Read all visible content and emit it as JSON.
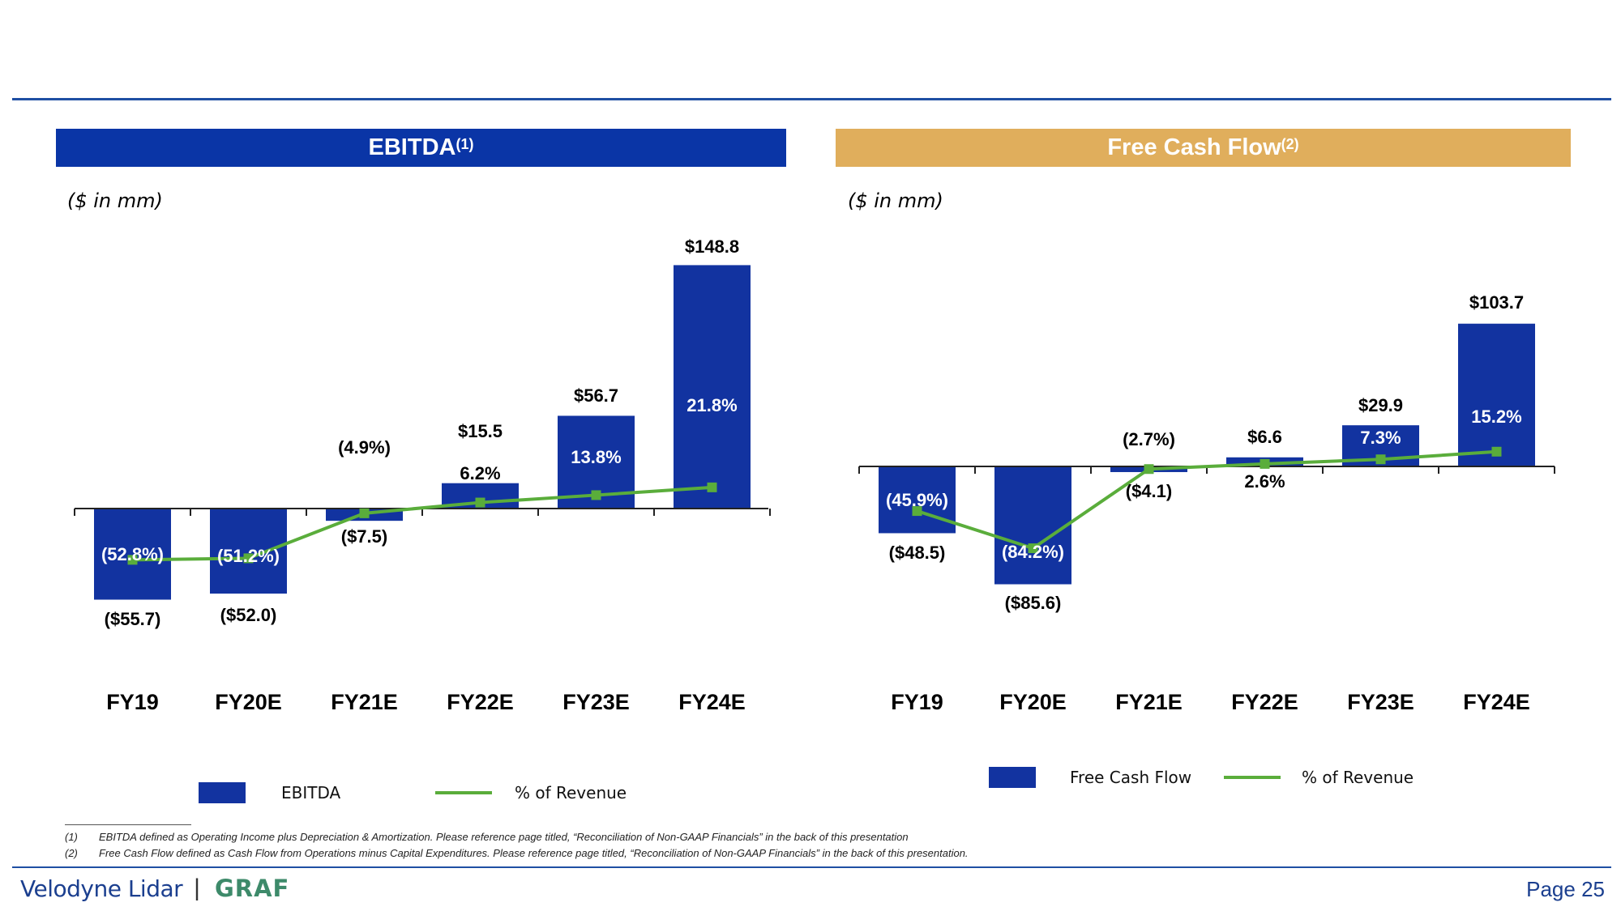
{
  "colors": {
    "blue": "#1233a0",
    "green": "#5aad3b",
    "gold": "#e0ae5c",
    "header_blue": "#0a35a6"
  },
  "panels": [
    {
      "title": "EBITDA",
      "sup": "(1)",
      "units": "($ in mm)",
      "legend_bar": "EBITDA",
      "legend_line": "% of Revenue"
    },
    {
      "title": "Free Cash Flow",
      "sup": "(2)",
      "units": "($ in mm)",
      "legend_bar": "Free Cash Flow",
      "legend_line": "% of Revenue"
    }
  ],
  "chart_data": [
    {
      "type": "bar",
      "title": "EBITDA",
      "categories": [
        "FY19",
        "FY20E",
        "FY21E",
        "FY22E",
        "FY23E",
        "FY24E"
      ],
      "series": [
        {
          "name": "EBITDA",
          "values": [
            -55.7,
            -52.0,
            -7.5,
            15.5,
            56.7,
            148.8
          ],
          "labels": [
            "($55.7)",
            "($52.0)",
            "($7.5)",
            "$15.5",
            "$56.7",
            "$148.8"
          ]
        },
        {
          "name": "% of Revenue",
          "type": "line",
          "values": [
            -52.8,
            -51.2,
            -4.9,
            6.2,
            13.8,
            21.8
          ],
          "labels": [
            "(52.8%)",
            "(51.2%)",
            "(4.9%)",
            "6.2%",
            "13.8%",
            "21.8%"
          ]
        }
      ]
    },
    {
      "type": "bar",
      "title": "Free Cash Flow",
      "categories": [
        "FY19",
        "FY20E",
        "FY21E",
        "FY22E",
        "FY23E",
        "FY24E"
      ],
      "series": [
        {
          "name": "Free Cash Flow",
          "values": [
            -48.5,
            -85.6,
            -4.1,
            6.6,
            29.9,
            103.7
          ],
          "labels": [
            "($48.5)",
            "($85.6)",
            "($4.1)",
            "$6.6",
            "$29.9",
            "$103.7"
          ]
        },
        {
          "name": "% of Revenue",
          "type": "line",
          "values": [
            -45.9,
            -84.2,
            -2.7,
            2.6,
            7.3,
            15.2
          ],
          "labels": [
            "(45.9%)",
            "(84.2%)",
            "(2.7%)",
            "2.6%",
            "7.3%",
            "15.2%"
          ]
        }
      ]
    }
  ],
  "footnotes": [
    {
      "num": "(1)",
      "text": "EBITDA defined as Operating Income plus Depreciation & Amortization. Please reference page titled, “Reconciliation of Non-GAAP Financials” in the back of this presentation"
    },
    {
      "num": "(2)",
      "text": "Free Cash Flow defined as Cash Flow from Operations minus Capital Expenditures. Please reference page titled, “Reconciliation of Non-GAAP Financials” in the back of this presentation."
    }
  ],
  "footer": {
    "brand1": "Velodyne Lidar",
    "brand_sep": "|",
    "brand2": "GRAF",
    "page": "Page 25"
  }
}
